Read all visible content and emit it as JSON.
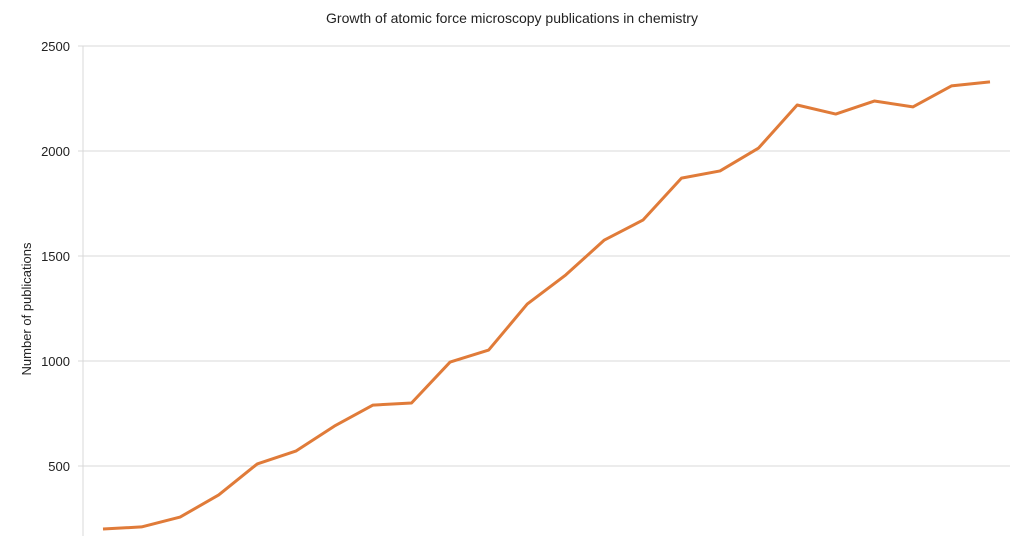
{
  "chart_data": {
    "type": "line",
    "title": "Growth of atomic force microscopy publications in chemistry",
    "xlabel": "",
    "ylabel": "Number of publications",
    "ylim": [
      0,
      2500
    ],
    "yticks": [
      "500",
      "1000",
      "1500",
      "2000",
      "2500"
    ],
    "grid": true,
    "series": [
      {
        "color": "#E07B39",
        "values": [
          200,
          210,
          257,
          362,
          510,
          571,
          690,
          790,
          800,
          995,
          1052,
          1271,
          1410,
          1576,
          1671,
          1871,
          1905,
          2014,
          2219,
          2176,
          2238,
          2210,
          2310,
          2329
        ]
      }
    ]
  }
}
